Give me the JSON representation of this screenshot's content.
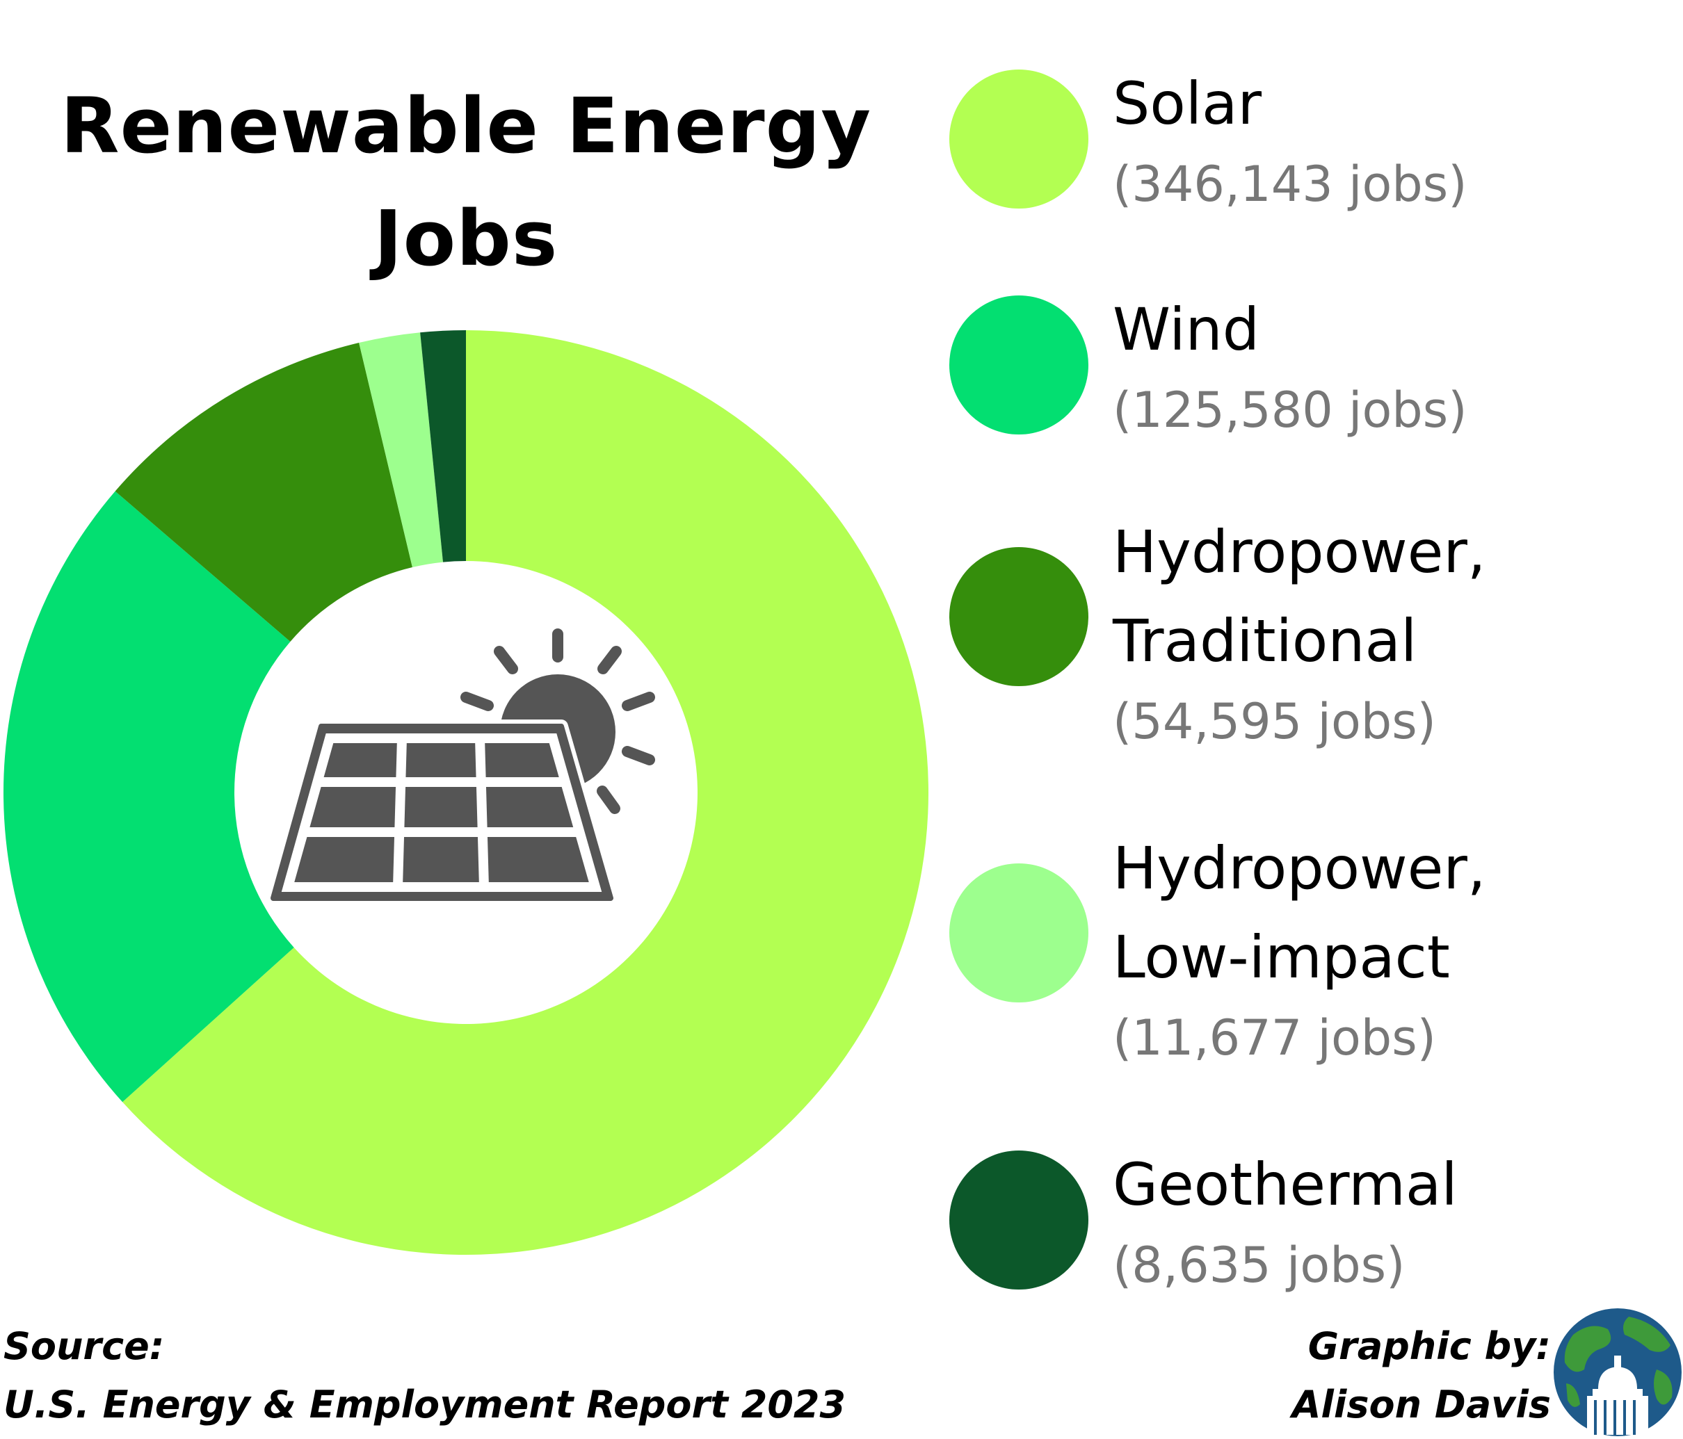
{
  "title": "Renewable Energy Jobs",
  "chart_data": {
    "type": "pie",
    "style": "donut",
    "title": "Renewable Energy Jobs",
    "categories": [
      "Solar",
      "Wind",
      "Hydropower, Traditional",
      "Hydropower, Low-impact",
      "Geothermal"
    ],
    "values": [
      346143,
      125580,
      54595,
      11677,
      8635
    ],
    "colors": [
      "#b3ff52",
      "#03df71",
      "#358e0c",
      "#9dff8e",
      "#0c582a"
    ],
    "legend_position": "right",
    "center_icon": "solar-panel-icon"
  },
  "legend": [
    {
      "name": "Solar",
      "jobs": "(346,143 jobs)",
      "color": "#b3ff52"
    },
    {
      "name": "Wind",
      "jobs": "(125,580 jobs)",
      "color": "#03df71"
    },
    {
      "name": "Hydropower,\nTraditional",
      "jobs": "(54,595 jobs)",
      "color": "#358e0c"
    },
    {
      "name": "Hydropower,\nLow-impact",
      "jobs": "(11,677 jobs)",
      "color": "#9dff8e"
    },
    {
      "name": "Geothermal",
      "jobs": "(8,635 jobs)",
      "color": "#0c582a"
    }
  ],
  "footer": {
    "source_label": "Source:",
    "source_text": "U.S. Energy & Employment Report 2023",
    "credit_label": "Graphic by:",
    "credit_name": "Alison Davis"
  },
  "icons": {
    "center": "solar-panel-icon",
    "logo": "globe-capitol-logo-icon"
  }
}
